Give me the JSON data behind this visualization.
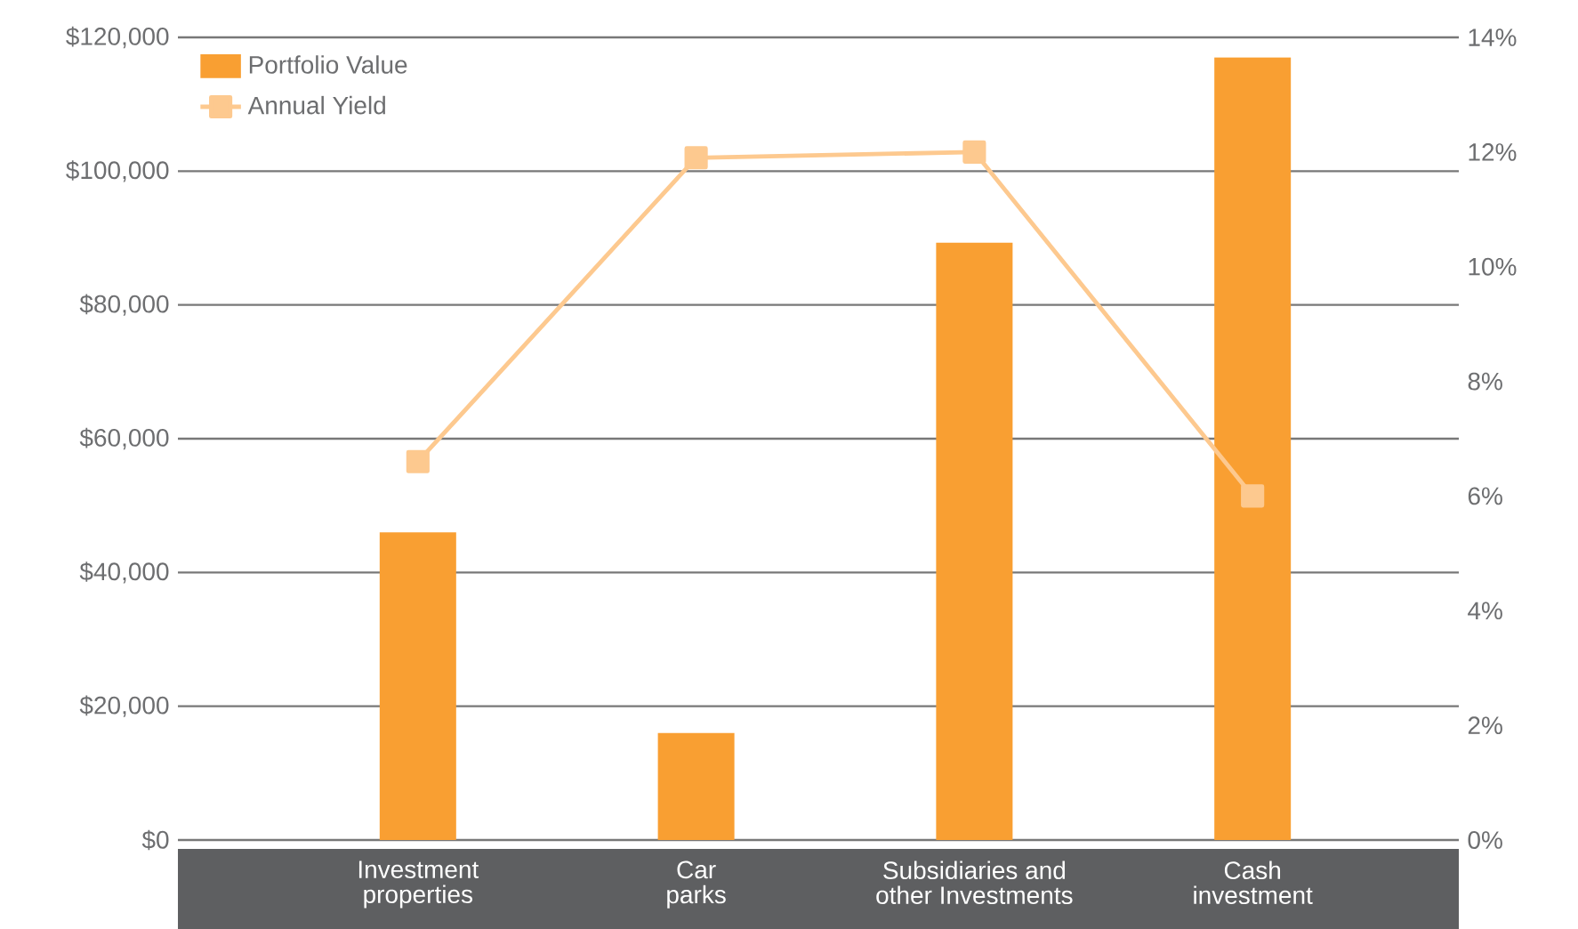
{
  "chart_data": {
    "type": "bar",
    "categories": [
      "Investment properties",
      "Car parks",
      "Subsidiaries and other Investments",
      "Cash investment"
    ],
    "series": [
      {
        "name": "Portfolio Value",
        "color": "#f99f32",
        "values": [
          46000,
          16000,
          89300,
          117000
        ]
      },
      {
        "name": "Annual Yield",
        "type": "line",
        "axis": "y2",
        "color": "#fdc98f",
        "marker": "square",
        "values": [
          6.6,
          11.9,
          12.0,
          6.0
        ]
      }
    ],
    "ylim": [
      0,
      120000
    ],
    "yticks": [
      {
        "value": 0,
        "label": "$0"
      },
      {
        "value": 20000,
        "label": "$20,000"
      },
      {
        "value": 40000,
        "label": "$40,000"
      },
      {
        "value": 60000,
        "label": "$60,000"
      },
      {
        "value": 80000,
        "label": "$80,000"
      },
      {
        "value": 100000,
        "label": "$100,000"
      },
      {
        "value": 120000,
        "label": "$120,000"
      }
    ],
    "y2lim": [
      0,
      14
    ],
    "y2ticks": [
      {
        "value": 0,
        "label": "0%"
      },
      {
        "value": 2,
        "label": "2%"
      },
      {
        "value": 4,
        "label": "4%"
      },
      {
        "value": 6,
        "label": "6%"
      },
      {
        "value": 8,
        "label": "8%"
      },
      {
        "value": 10,
        "label": "10%"
      },
      {
        "value": 12,
        "label": "12%"
      },
      {
        "value": 14,
        "label": "14%"
      }
    ],
    "grid": "y",
    "legend": "top left"
  }
}
